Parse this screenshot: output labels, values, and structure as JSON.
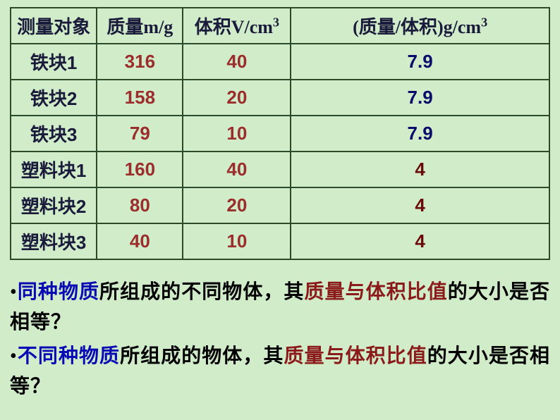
{
  "table": {
    "headers": {
      "object": "测量对象",
      "mass": "质量m/g",
      "volume_prefix": "体积V/cm",
      "volume_sup": "3",
      "ratio_prefix": "(质量/体积)g/cm",
      "ratio_sup": "3"
    },
    "rows": [
      {
        "label": "铁块1",
        "mass": "316",
        "vol": "40",
        "ratio": "7.9",
        "ratio_class": "ratio-navy"
      },
      {
        "label": "铁块2",
        "mass": "158",
        "vol": "20",
        "ratio": "7.9",
        "ratio_class": "ratio-navy"
      },
      {
        "label": "铁块3",
        "mass": "79",
        "vol": "10",
        "ratio": "7.9",
        "ratio_class": "ratio-navy"
      },
      {
        "label": "塑料块1",
        "mass": "160",
        "vol": "40",
        "ratio": "4",
        "ratio_class": "ratio-dark"
      },
      {
        "label": "塑料块2",
        "mass": "80",
        "vol": "20",
        "ratio": "4",
        "ratio_class": "ratio-dark"
      },
      {
        "label": "塑料块3",
        "mass": "40",
        "vol": "10",
        "ratio": "4",
        "ratio_class": "ratio-dark"
      }
    ]
  },
  "q1": {
    "bullet": "•",
    "s1": "同种物质",
    "s2": "所组成的不同物体，其",
    "s3": "质量与体积比值",
    "s4": "的大小是否相等？"
  },
  "q2": {
    "bullet": "•",
    "s1": "不同种物质",
    "s2": "所组成的物体，其",
    "s3": "质量与体积比值",
    "s4": "的大小是否相等？"
  },
  "colors": {
    "background": "#d1ecc9",
    "border": "#2a4a2a",
    "header_text": "#1a1a3a",
    "mass_text": "#9b2d2d",
    "ratio_navy": "#0a0a6b",
    "ratio_darkred": "#6b0a0a",
    "q_blue": "#0a0ab5",
    "q_darkred": "#8b1a1a"
  },
  "column_widths_pct": [
    16,
    16,
    20,
    48
  ]
}
